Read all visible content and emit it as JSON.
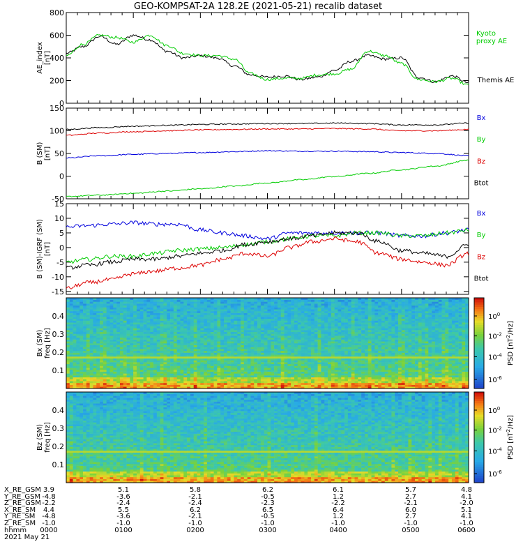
{
  "title": "GEO-KOMPSAT-2A 128.2E (2021-05-21) recalib dataset",
  "colors": {
    "black": "#000000",
    "red": "#dd0000",
    "blue": "#0000dd",
    "green": "#00cc00"
  },
  "chart_data": [
    {
      "type": "line",
      "ylabel": "AE_index [nT]",
      "ylim": [
        0,
        800
      ],
      "yticks": [
        "0",
        "200",
        "400",
        "600",
        "800"
      ],
      "x": [
        "0000",
        "0015",
        "0030",
        "0045",
        "0100",
        "0115",
        "0130",
        "0145",
        "0200",
        "0215",
        "0230",
        "0245",
        "0300",
        "0315",
        "0330",
        "0345",
        "0400",
        "0415",
        "0430",
        "0445",
        "0500",
        "0515",
        "0530",
        "0545",
        "0600"
      ],
      "series": [
        {
          "name": "Themis AE",
          "color": "#000000",
          "values": [
            440,
            500,
            590,
            520,
            600,
            560,
            460,
            400,
            420,
            400,
            330,
            250,
            230,
            240,
            210,
            230,
            290,
            370,
            420,
            390,
            400,
            230,
            190,
            240,
            180
          ]
        },
        {
          "name": "Kyoto proxy AE",
          "color": "#00cc00",
          "values": [
            420,
            520,
            600,
            580,
            540,
            600,
            510,
            440,
            420,
            420,
            390,
            260,
            210,
            220,
            220,
            250,
            260,
            300,
            460,
            420,
            350,
            210,
            190,
            220,
            160
          ]
        }
      ]
    },
    {
      "type": "line",
      "ylabel": "B (SM) [nT]",
      "ylim": [
        -50,
        150
      ],
      "yticks": [
        "-50",
        "0",
        "50",
        "100",
        "150"
      ],
      "x": [
        "0000",
        "0030",
        "0100",
        "0130",
        "0200",
        "0230",
        "0300",
        "0330",
        "0400",
        "0430",
        "0500",
        "0530",
        "0600"
      ],
      "series": [
        {
          "name": "Bx",
          "color": "#0000dd",
          "values": [
            40,
            45,
            48,
            50,
            52,
            54,
            56,
            55,
            55,
            54,
            52,
            50,
            45
          ]
        },
        {
          "name": "By",
          "color": "#00cc00",
          "values": [
            -45,
            -42,
            -38,
            -33,
            -28,
            -22,
            -15,
            -8,
            -1,
            6,
            14,
            22,
            35
          ]
        },
        {
          "name": "Bz",
          "color": "#dd0000",
          "values": [
            90,
            95,
            98,
            100,
            102,
            103,
            104,
            104,
            105,
            104,
            100,
            100,
            103
          ]
        },
        {
          "name": "Btot",
          "color": "#000000",
          "values": [
            103,
            107,
            110,
            112,
            114,
            115,
            116,
            116,
            117,
            116,
            113,
            113,
            117
          ]
        }
      ]
    },
    {
      "type": "line",
      "ylabel": "B (SM)-IGRF (SM) [nT]",
      "ylim": [
        -16,
        15
      ],
      "yticks": [
        "-15",
        "-10",
        "-5",
        "0",
        "5",
        "10",
        "15"
      ],
      "x": [
        "0000",
        "0020",
        "0040",
        "0100",
        "0120",
        "0140",
        "0200",
        "0220",
        "0240",
        "0300",
        "0320",
        "0340",
        "0400",
        "0420",
        "0440",
        "0500",
        "0520",
        "0540",
        "0600"
      ],
      "series": [
        {
          "name": "Bx",
          "color": "#0000dd",
          "values": [
            7,
            7.5,
            8,
            8.5,
            8,
            8,
            6,
            5,
            4,
            3,
            5,
            5,
            5,
            5,
            5,
            4,
            4,
            5,
            6
          ]
        },
        {
          "name": "By",
          "color": "#00cc00",
          "values": [
            -5,
            -4,
            -3,
            -3,
            -2,
            -1,
            -0.5,
            0,
            1,
            2,
            3,
            4,
            4,
            5,
            5,
            4,
            4,
            5,
            6
          ]
        },
        {
          "name": "Bz",
          "color": "#dd0000",
          "values": [
            -14,
            -12,
            -11,
            -9,
            -8,
            -7,
            -6,
            -4,
            -2,
            -3,
            0,
            2,
            3,
            2,
            -2,
            -4,
            -5,
            -6,
            -2
          ]
        },
        {
          "name": "Btot",
          "color": "#000000",
          "values": [
            -7,
            -6,
            -5,
            -4,
            -4,
            -3,
            -2,
            -1,
            1,
            2,
            3,
            4,
            5,
            5,
            2,
            -1,
            -2,
            -3,
            1
          ]
        }
      ]
    },
    {
      "type": "heatmap",
      "ylabel": "Bx (SM) freq [Hz]",
      "ylim": [
        0,
        0.5
      ],
      "yticks": [
        "0.1",
        "0.2",
        "0.3",
        "0.4"
      ],
      "colorbar_label": "PSD [nT^2/Hz]",
      "colorbar_ticks": [
        "10^0",
        "10^-2",
        "10^-4",
        "10^-6"
      ],
      "line_freq": 0.175
    },
    {
      "type": "heatmap",
      "ylabel": "Bz (SM) freq [Hz]",
      "ylim": [
        0,
        0.5
      ],
      "yticks": [
        "0.1",
        "0.2",
        "0.3",
        "0.4"
      ],
      "colorbar_label": "PSD [nT^2/Hz]",
      "colorbar_ticks": [
        "10^0",
        "10^-2",
        "10^-4",
        "10^-6"
      ],
      "line_freq": 0.17
    }
  ],
  "ephemeris": {
    "labels": [
      "X_RE_GSM",
      "Y_RE_GSM",
      "Z_RE_GSM",
      "X_RE_SM",
      "Y_RE_SM",
      "Z_RE_SM",
      "hhmm"
    ],
    "columns": [
      [
        "3.9",
        "-4.8",
        "-2.2",
        "4.4",
        "-4.8",
        "-1.0",
        "0000"
      ],
      [
        "5.1",
        "-3.6",
        "-2.4",
        "5.5",
        "-3.6",
        "-1.0",
        "0100"
      ],
      [
        "5.8",
        "-2.1",
        "-2.4",
        "6.2",
        "-2.1",
        "-1.0",
        "0200"
      ],
      [
        "6.2",
        "-0.5",
        "-2.3",
        "6.5",
        "-0.5",
        "-1.0",
        "0300"
      ],
      [
        "6.1",
        "1.2",
        "-2.2",
        "6.4",
        "1.2",
        "-1.0",
        "0400"
      ],
      [
        "5.7",
        "2.7",
        "-2.1",
        "6.0",
        "2.7",
        "-1.0",
        "0500"
      ],
      [
        "4.8",
        "4.1",
        "-2.0",
        "5.1",
        "4.1",
        "-1.0",
        "0600"
      ]
    ],
    "date": "2021 May 21"
  }
}
